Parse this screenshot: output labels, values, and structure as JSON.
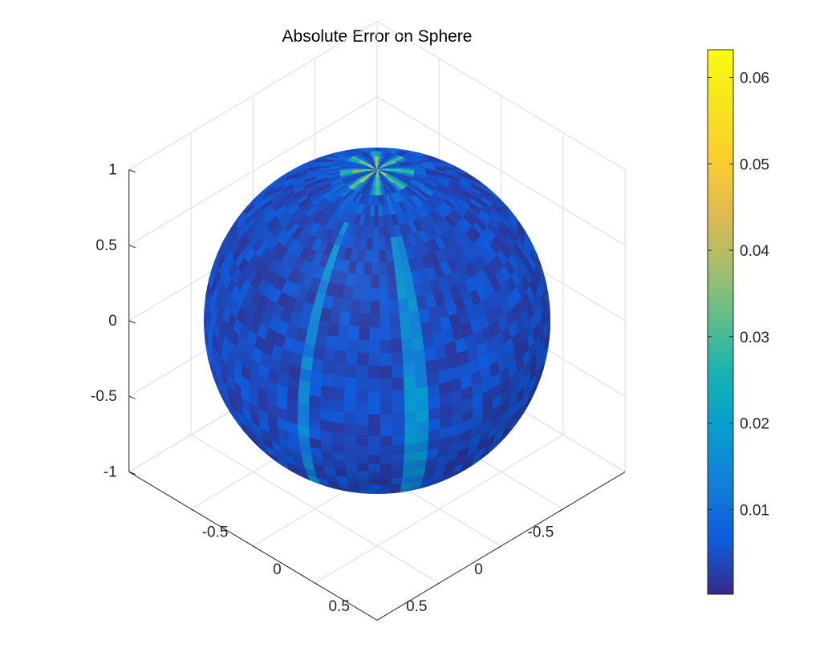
{
  "chart_data": {
    "type": "heatmap",
    "surface": "sphere",
    "title": "Absolute Error on Sphere",
    "xlim": [
      -1,
      1
    ],
    "ylim": [
      -1,
      1
    ],
    "zlim": [
      -1,
      1
    ],
    "x_ticks": [
      -0.5,
      0,
      0.5
    ],
    "x_tick_labels": [
      "-0.5",
      "0",
      "0.5"
    ],
    "y_ticks": [
      -0.5,
      0,
      0.5
    ],
    "y_tick_labels": [
      "-0.5",
      "0",
      "0.5"
    ],
    "z_ticks": [
      -1,
      -0.5,
      0,
      0.5,
      1
    ],
    "z_tick_labels": [
      "-1",
      "-0.5",
      "0",
      "0.5",
      "1"
    ],
    "grid": true,
    "view": "3d",
    "colormap": "parula",
    "colorbar": {
      "location": "right",
      "min": 0.0002,
      "max": 0.0632,
      "ticks": [
        0.01,
        0.02,
        0.03,
        0.04,
        0.05,
        0.06
      ],
      "tick_labels": [
        "0.01",
        "0.02",
        "0.03",
        "0.04",
        "0.05",
        "0.06"
      ]
    },
    "error_summary": {
      "typical": 0.005,
      "streak": 0.016,
      "pole_max": 0.06
    }
  }
}
